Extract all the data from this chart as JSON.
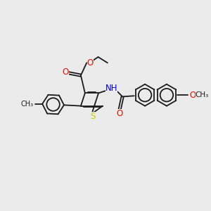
{
  "background_color": "#ebebeb",
  "bond_color": "#1a1a1a",
  "figsize": [
    3.0,
    3.0
  ],
  "dpi": 100,
  "S_color": "#cccc00",
  "O_color": "#dd1100",
  "N_color": "#0000dd",
  "lw": 1.3,
  "xlim": [
    0,
    10
  ],
  "ylim": [
    0,
    10
  ]
}
